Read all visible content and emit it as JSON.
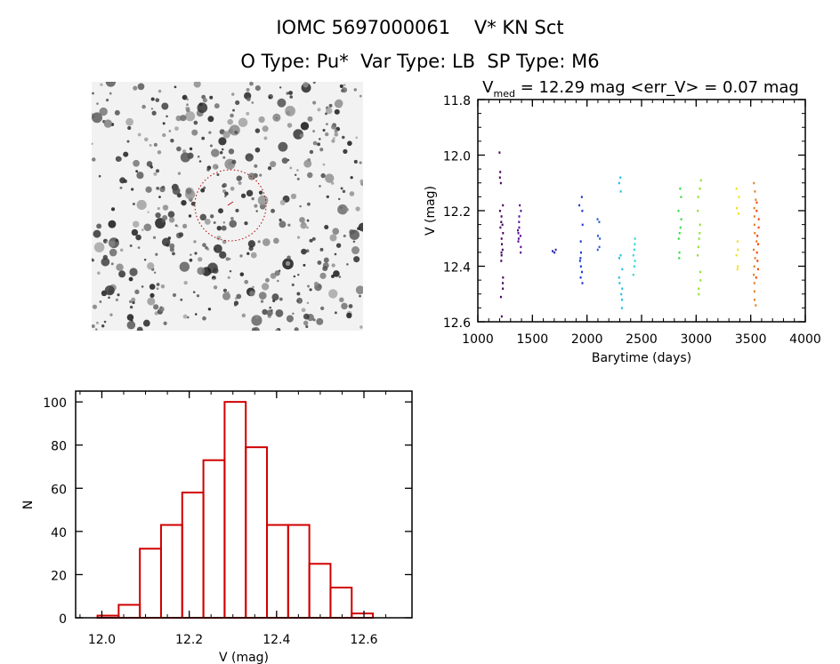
{
  "header": {
    "title": "IOMC 5697000061    V* KN Sct",
    "subtitle": "O Type: Pu*  Var Type: LB  SP Type: M6"
  },
  "image_panel": {
    "type": "star field cutout",
    "marker_color": "#b00000"
  },
  "chart_data": [
    {
      "type": "scatter",
      "title_main": "V",
      "title_sub": "med",
      "title_rest": " = 12.29 mag <err_V> = 0.07 mag",
      "xlabel": "Barytime (days)",
      "ylabel": "V (mag)",
      "xlim": [
        1000,
        4000
      ],
      "ylim": [
        12.6,
        11.8
      ],
      "y_inverted": true,
      "xticks": [
        1000,
        1500,
        2000,
        2500,
        3000,
        3500,
        4000
      ],
      "xtick_labels": [
        "1000",
        "1500",
        "2000",
        "2500",
        "3000",
        "3500",
        "4000"
      ],
      "yticks": [
        11.8,
        12.0,
        12.2,
        12.4,
        12.6
      ],
      "ytick_labels": [
        "11.8",
        "12.0",
        "12.2",
        "12.4",
        "12.6"
      ],
      "series": [
        {
          "t": 1215,
          "color": "#4a0060",
          "mags": [
            11.99,
            12.06,
            12.08,
            12.1,
            12.18,
            12.2,
            12.22,
            12.24,
            12.25,
            12.26,
            12.28,
            12.3,
            12.32,
            12.34,
            12.35,
            12.36,
            12.38,
            12.44,
            12.46,
            12.48,
            12.51,
            12.58
          ]
        },
        {
          "t": 1380,
          "color": "#5a1098",
          "mags": [
            12.18,
            12.2,
            12.22,
            12.24,
            12.26,
            12.27,
            12.28,
            12.29,
            12.3,
            12.31,
            12.33,
            12.35
          ]
        },
        {
          "t": 1700,
          "color": "#3030b0",
          "mags": [
            12.34,
            12.345,
            12.35
          ]
        },
        {
          "t": 1945,
          "color": "#1a3ad0",
          "mags": [
            12.15,
            12.18,
            12.2,
            12.25,
            12.31,
            12.35,
            12.37,
            12.38,
            12.4,
            12.42,
            12.44,
            12.46
          ]
        },
        {
          "t": 2110,
          "color": "#2a60d0",
          "mags": [
            12.23,
            12.24,
            12.29,
            12.3,
            12.33,
            12.34
          ]
        },
        {
          "t": 2310,
          "color": "#20c0e0",
          "mags": [
            12.08,
            12.1,
            12.13,
            12.36,
            12.37,
            12.41,
            12.44,
            12.46,
            12.48,
            12.5,
            12.52,
            12.55
          ]
        },
        {
          "t": 2440,
          "color": "#30d8d0",
          "mags": [
            12.3,
            12.32,
            12.34,
            12.36,
            12.38,
            12.4,
            12.43
          ]
        },
        {
          "t": 2850,
          "color": "#30e040",
          "mags": [
            12.12,
            12.15,
            12.2,
            12.23,
            12.26,
            12.28,
            12.3,
            12.35,
            12.37
          ]
        },
        {
          "t": 3030,
          "color": "#90e030",
          "mags": [
            12.09,
            12.12,
            12.15,
            12.2,
            12.25,
            12.28,
            12.3,
            12.33,
            12.36,
            12.42,
            12.45,
            12.48,
            12.5
          ]
        },
        {
          "t": 3380,
          "color": "#f0e020",
          "mags": [
            12.12,
            12.15,
            12.19,
            12.21,
            12.31,
            12.34,
            12.36,
            12.4,
            12.41
          ]
        },
        {
          "t": 3540,
          "color": "#e08020",
          "mags": [
            12.1,
            12.13,
            12.16,
            12.19,
            12.22,
            12.25,
            12.28,
            12.31,
            12.34,
            12.37,
            12.4,
            12.43,
            12.46,
            12.49,
            12.52,
            12.54
          ]
        },
        {
          "t": 3560,
          "color": "#ff4000",
          "mags": [
            12.17,
            12.2,
            12.23,
            12.26,
            12.29,
            12.32,
            12.35,
            12.38,
            12.41,
            12.44
          ]
        }
      ]
    },
    {
      "type": "bar",
      "histogram": true,
      "xlabel": "V (mag)",
      "ylabel": "N",
      "bin_start": 11.99,
      "bin_width": 0.0485,
      "counts": [
        1,
        6,
        32,
        43,
        58,
        73,
        100,
        79,
        43,
        43,
        25,
        14,
        2
      ],
      "xlim": [
        11.94,
        12.71
      ],
      "ylim": [
        0,
        105
      ],
      "xticks": [
        12.0,
        12.2,
        12.4,
        12.6
      ],
      "xtick_labels": [
        "12.0",
        "12.2",
        "12.4",
        "12.6"
      ],
      "yticks": [
        0,
        20,
        40,
        60,
        80,
        100
      ],
      "ytick_labels": [
        "0",
        "20",
        "40",
        "60",
        "80",
        "100"
      ],
      "color": "#d00000"
    }
  ]
}
